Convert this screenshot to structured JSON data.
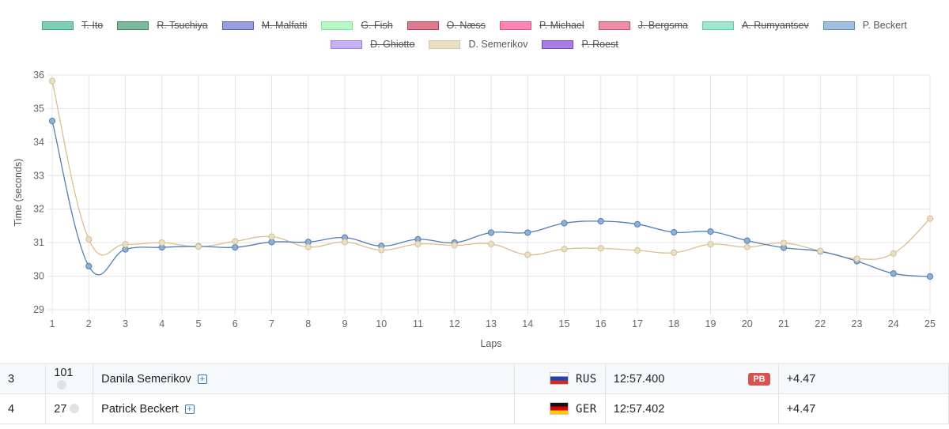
{
  "legend": {
    "rows": [
      [
        {
          "name": "T. Ito",
          "hidden": true,
          "color": "#7fcfb6",
          "border": "#3fa884"
        },
        {
          "name": "R. Tsuchiya",
          "hidden": true,
          "color": "#7db89e",
          "border": "#3c8a63"
        },
        {
          "name": "M. Malfatti",
          "hidden": true,
          "color": "#989de0",
          "border": "#5a5fc4"
        },
        {
          "name": "G. Fish",
          "hidden": true,
          "color": "#b8f8c5",
          "border": "#7fe298"
        },
        {
          "name": "O. Næss",
          "hidden": true,
          "color": "#de7a8c",
          "border": "#b83d55"
        },
        {
          "name": "P. Michael",
          "hidden": true,
          "color": "#ff86b4",
          "border": "#e84a8c"
        },
        {
          "name": "J. Bergsma",
          "hidden": true,
          "color": "#ec8fa3",
          "border": "#cc4f6a"
        },
        {
          "name": "A. Rumyantsev",
          "hidden": true,
          "color": "#9fe7cf",
          "border": "#5ccaa8"
        },
        {
          "name": "P. Beckert",
          "hidden": false,
          "color": "#a0bfdf",
          "border": "#5f8fc0"
        }
      ],
      [
        {
          "name": "D. Ghiotto",
          "hidden": true,
          "color": "#c6b1f4",
          "border": "#9b7de6"
        },
        {
          "name": "D. Semerikov",
          "hidden": false,
          "color": "#eadfc6",
          "border": "#d8c59b"
        },
        {
          "name": "P. Roest",
          "hidden": true,
          "color": "#a77ee6",
          "border": "#7b43cc"
        }
      ]
    ]
  },
  "chart_data": {
    "type": "line",
    "xlabel": "Laps",
    "ylabel": "Time (seconds)",
    "ylim": [
      29,
      36
    ],
    "yticks": [
      29,
      30,
      31,
      32,
      33,
      34,
      35,
      36
    ],
    "x": [
      1,
      2,
      3,
      4,
      5,
      6,
      7,
      8,
      9,
      10,
      11,
      12,
      13,
      14,
      15,
      16,
      17,
      18,
      19,
      20,
      21,
      22,
      23,
      24,
      25
    ],
    "grid": true,
    "legend_position": "top",
    "series": [
      {
        "name": "P. Beckert",
        "color": "#4f7fb5",
        "fill": "#8fb0d6",
        "values": [
          34.63,
          30.3,
          30.8,
          30.86,
          30.89,
          30.86,
          31.02,
          31.02,
          31.15,
          30.9,
          31.1,
          31.0,
          31.3,
          31.3,
          31.58,
          31.64,
          31.55,
          31.31,
          31.33,
          31.06,
          30.85,
          30.74,
          30.45,
          30.08,
          29.99
        ]
      },
      {
        "name": "D. Semerikov",
        "color": "#d7bf8e",
        "fill": "#eadfc6",
        "values": [
          35.82,
          31.1,
          30.95,
          31.0,
          30.88,
          31.04,
          31.18,
          30.87,
          31.02,
          30.78,
          30.96,
          30.92,
          30.96,
          30.64,
          30.81,
          30.83,
          30.77,
          30.7,
          30.95,
          30.87,
          30.99,
          30.75,
          30.52,
          30.68,
          31.72
        ]
      }
    ]
  },
  "results": [
    {
      "pos": "3",
      "bib": "101",
      "name": "Danila Semerikov",
      "flag": "rus",
      "nation": "RUS",
      "time": "12:57.400",
      "badge": "PB",
      "gap": "+4.47"
    },
    {
      "pos": "4",
      "bib": "27",
      "name": "Patrick Beckert",
      "flag": "ger",
      "nation": "GER",
      "time": "12:57.402",
      "badge": "",
      "gap": "+4.47"
    }
  ]
}
